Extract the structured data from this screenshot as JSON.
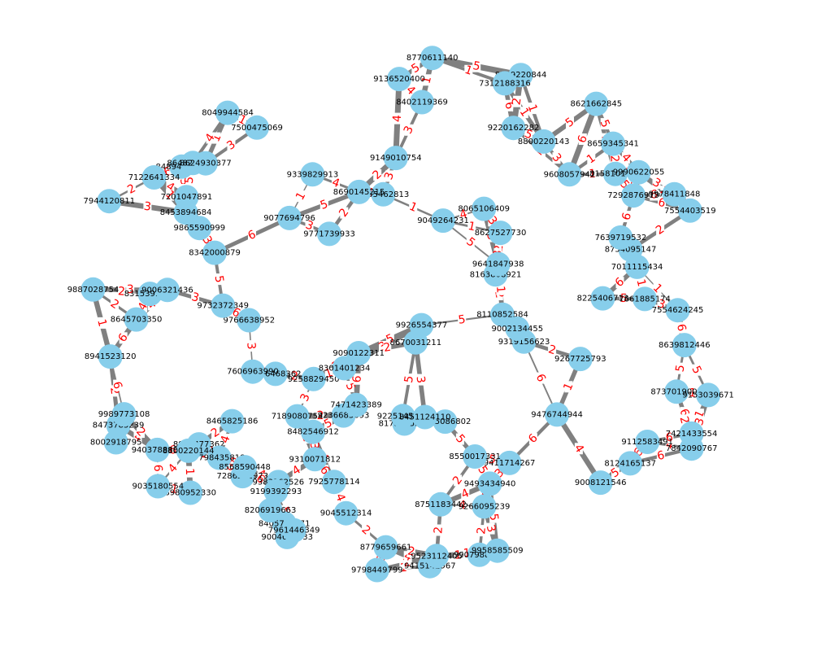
{
  "colors": {
    "node": "#87ceeb",
    "edge": "#808080",
    "label": "#000000",
    "weight": "#ff0000",
    "background": "#ffffff"
  },
  "graph": {
    "nodes": [
      "8754095147",
      "8342000879",
      "7201047891",
      "9798449799",
      "8465825186",
      "7925778114",
      "9049264231",
      "7286512973",
      "9356468362",
      "9319156623",
      "8645703350",
      "9771739933",
      "7011115434",
      "9978411848",
      "8621662845",
      "8405743971",
      "8065106409",
      "9112583491",
      "7606963990",
      "8163808921",
      "9149010754",
      "9383162526",
      "8994477362",
      "9258829450",
      "8124165137",
      "8473785239",
      "8489413659",
      "8648263660",
      "9004632833",
      "8110852584",
      "9989773108",
      "7421433554",
      "8779659661",
      "9220162282",
      "9641847938",
      "7122641334",
      "7842090767",
      "9865590999",
      "9267725793",
      "7355462813",
      "7944120811",
      "7661885174",
      "8789220844",
      "9266095239",
      "9199392293",
      "9415142967",
      "8225406713",
      "7189080754",
      "8980952330",
      "8158101767",
      "9077694796",
      "9476744944",
      "8624930377",
      "9990622055",
      "9766638952",
      "9236685693",
      "9732372349",
      "9485086802",
      "7500475069",
      "9907988647",
      "7312188316",
      "8402119369",
      "7471423389",
      "9310071812",
      "9403788881",
      "9035180554",
      "8173055572",
      "8002918795",
      "9608057942",
      "7292876915",
      "8639812446",
      "7961446349",
      "9493434940",
      "9958585509",
      "8482546912",
      "9887028754",
      "8206919663",
      "8453894684",
      "8659345341",
      "7798435818",
      "9339829913",
      "7639719532",
      "8737019002",
      "9411714267",
      "8315399833",
      "7554403519",
      "8627527730",
      "8049944584",
      "9926554377",
      "9153039671",
      "8941523120",
      "9225145054",
      "8751183442",
      "7554624245",
      "8568590448",
      "9523112405",
      "9006321436",
      "9136520400",
      "9008121546",
      "8550017331",
      "8451124110",
      "8690145215",
      "9090122311",
      "9002134455",
      "8770611140",
      "8800220143",
      "8800220144",
      "8301401234",
      "9045512314",
      "8670031211"
    ],
    "weight_labels": [
      "1",
      "2",
      "3",
      "4",
      "5",
      "6"
    ]
  }
}
